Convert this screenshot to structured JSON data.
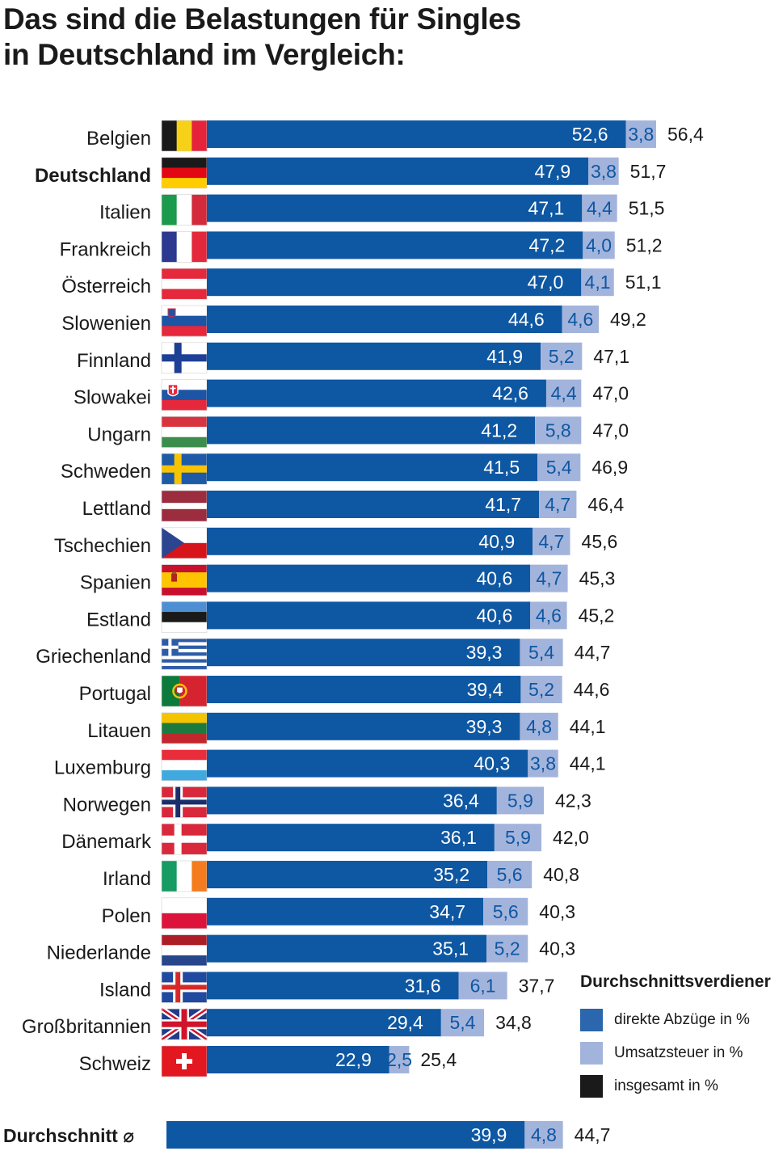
{
  "title": {
    "line1": "Das sind die Belastungen für Singles",
    "line2": "in Deutschland im Vergleich:"
  },
  "colors": {
    "direct": "#0e57a2",
    "vat": "#a3b4dc",
    "total": "#1a1a1a",
    "text_on_bar": "#ffffff",
    "text_on_vat": "#0e57a2"
  },
  "legend": {
    "title": "Durchschnittsverdiener",
    "items": [
      {
        "label": "direkte Abzüge in %",
        "color": "#2c66ad"
      },
      {
        "label": "Umsatzsteuer in %",
        "color": "#a3b4dc"
      },
      {
        "label": "insgesamt in %",
        "color": "#1a1a1a"
      }
    ]
  },
  "chart_data": {
    "type": "bar",
    "orientation": "horizontal",
    "stacked": true,
    "title": "Das sind die Belastungen für Singles in Deutschland im Vergleich:",
    "series": [
      {
        "name": "direkte Abzüge in %",
        "values": [
          "52,6",
          "47,9",
          "47,1",
          "47,2",
          "47,0",
          "44,6",
          "41,9",
          "42,6",
          "41,2",
          "41,5",
          "41,7",
          "40,9",
          "40,6",
          "40,6",
          "39,3",
          "39,4",
          "39,3",
          "40,3",
          "36,4",
          "36,1",
          "35,2",
          "34,7",
          "35,1",
          "31,6",
          "29,4",
          "22,9"
        ]
      },
      {
        "name": "Umsatzsteuer in %",
        "values": [
          "3,8",
          "3,8",
          "4,4",
          "4,0",
          "4,1",
          "4,6",
          "5,2",
          "4,4",
          "5,8",
          "5,4",
          "4,7",
          "4,7",
          "4,7",
          "4,6",
          "5,4",
          "5,2",
          "4,8",
          "3,8",
          "5,9",
          "5,9",
          "5,6",
          "5,6",
          "5,2",
          "6,1",
          "5,4",
          "2,5"
        ]
      },
      {
        "name": "insgesamt in %",
        "values": [
          "56,4",
          "51,7",
          "51,5",
          "51,2",
          "51,1",
          "49,2",
          "47,1",
          "47,0",
          "47,0",
          "46,9",
          "46,4",
          "45,6",
          "45,3",
          "45,2",
          "44,7",
          "44,6",
          "44,1",
          "44,1",
          "42,3",
          "42,0",
          "40,8",
          "40,3",
          "40,3",
          "37,7",
          "34,8",
          "25,4"
        ]
      }
    ],
    "rows": [
      {
        "country": "Belgien",
        "flag": "belgium-flag",
        "highlight": false,
        "direct": "52,6",
        "vat": "3,8",
        "total": "56,4"
      },
      {
        "country": "Deutschland",
        "flag": "germany-flag",
        "highlight": true,
        "direct": "47,9",
        "vat": "3,8",
        "total": "51,7"
      },
      {
        "country": "Italien",
        "flag": "italy-flag",
        "highlight": false,
        "direct": "47,1",
        "vat": "4,4",
        "total": "51,5"
      },
      {
        "country": "Frankreich",
        "flag": "france-flag",
        "highlight": false,
        "direct": "47,2",
        "vat": "4,0",
        "total": "51,2"
      },
      {
        "country": "Österreich",
        "flag": "austria-flag",
        "highlight": false,
        "direct": "47,0",
        "vat": "4,1",
        "total": "51,1"
      },
      {
        "country": "Slowenien",
        "flag": "slovenia-flag",
        "highlight": false,
        "direct": "44,6",
        "vat": "4,6",
        "total": "49,2"
      },
      {
        "country": "Finnland",
        "flag": "finland-flag",
        "highlight": false,
        "direct": "41,9",
        "vat": "5,2",
        "total": "47,1"
      },
      {
        "country": "Slowakei",
        "flag": "slovakia-flag",
        "highlight": false,
        "direct": "42,6",
        "vat": "4,4",
        "total": "47,0"
      },
      {
        "country": "Ungarn",
        "flag": "hungary-flag",
        "highlight": false,
        "direct": "41,2",
        "vat": "5,8",
        "total": "47,0"
      },
      {
        "country": "Schweden",
        "flag": "sweden-flag",
        "highlight": false,
        "direct": "41,5",
        "vat": "5,4",
        "total": "46,9"
      },
      {
        "country": "Lettland",
        "flag": "latvia-flag",
        "highlight": false,
        "direct": "41,7",
        "vat": "4,7",
        "total": "46,4"
      },
      {
        "country": "Tschechien",
        "flag": "czechia-flag",
        "highlight": false,
        "direct": "40,9",
        "vat": "4,7",
        "total": "45,6"
      },
      {
        "country": "Spanien",
        "flag": "spain-flag",
        "highlight": false,
        "direct": "40,6",
        "vat": "4,7",
        "total": "45,3"
      },
      {
        "country": "Estland",
        "flag": "estonia-flag",
        "highlight": false,
        "direct": "40,6",
        "vat": "4,6",
        "total": "45,2"
      },
      {
        "country": "Griechenland",
        "flag": "greece-flag",
        "highlight": false,
        "direct": "39,3",
        "vat": "5,4",
        "total": "44,7"
      },
      {
        "country": "Portugal",
        "flag": "portugal-flag",
        "highlight": false,
        "direct": "39,4",
        "vat": "5,2",
        "total": "44,6"
      },
      {
        "country": "Litauen",
        "flag": "lithuania-flag",
        "highlight": false,
        "direct": "39,3",
        "vat": "4,8",
        "total": "44,1"
      },
      {
        "country": "Luxemburg",
        "flag": "luxembourg-flag",
        "highlight": false,
        "direct": "40,3",
        "vat": "3,8",
        "total": "44,1"
      },
      {
        "country": "Norwegen",
        "flag": "norway-flag",
        "highlight": false,
        "direct": "36,4",
        "vat": "5,9",
        "total": "42,3"
      },
      {
        "country": "Dänemark",
        "flag": "denmark-flag",
        "highlight": false,
        "direct": "36,1",
        "vat": "5,9",
        "total": "42,0"
      },
      {
        "country": "Irland",
        "flag": "ireland-flag",
        "highlight": false,
        "direct": "35,2",
        "vat": "5,6",
        "total": "40,8"
      },
      {
        "country": "Polen",
        "flag": "poland-flag",
        "highlight": false,
        "direct": "34,7",
        "vat": "5,6",
        "total": "40,3"
      },
      {
        "country": "Niederlande",
        "flag": "netherlands-flag",
        "highlight": false,
        "direct": "35,1",
        "vat": "5,2",
        "total": "40,3"
      },
      {
        "country": "Island",
        "flag": "iceland-flag",
        "highlight": false,
        "direct": "31,6",
        "vat": "6,1",
        "total": "37,7"
      },
      {
        "country": "Großbritannien",
        "flag": "uk-flag",
        "highlight": false,
        "direct": "29,4",
        "vat": "5,4",
        "total": "34,8"
      },
      {
        "country": "Schweiz",
        "flag": "switzerland-flag",
        "highlight": false,
        "direct": "22,9",
        "vat": "2,5",
        "total": "25,4"
      }
    ],
    "average": {
      "label": "Durchschnitt ⌀",
      "direct": "39,9",
      "vat": "4,8",
      "total": "44,7"
    },
    "xlim": [
      0,
      56.4
    ]
  }
}
